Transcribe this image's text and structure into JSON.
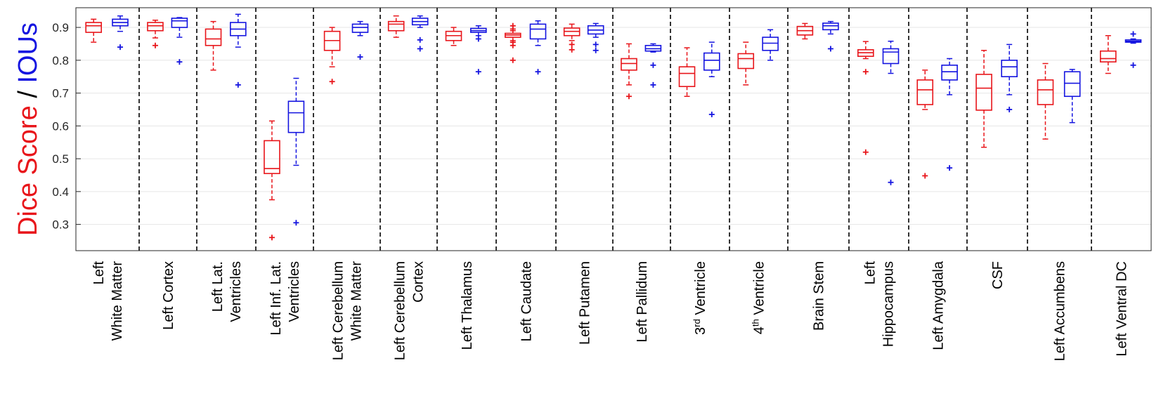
{
  "chart_data": {
    "type": "box",
    "ylabel_parts": [
      {
        "text": "Dice Score",
        "color": "#e8151a"
      },
      {
        "text": " / ",
        "color": "#000000"
      },
      {
        "text": "IOUs",
        "color": "#1414e0"
      }
    ],
    "ylim": [
      0.22,
      0.96
    ],
    "yticks": [
      "0.3",
      "0.4",
      "0.5",
      "0.6",
      "0.7",
      "0.8",
      "0.9"
    ],
    "grid": true,
    "series": [
      {
        "color": "#e8151a"
      },
      {
        "color": "#1414e0"
      }
    ],
    "categories": [
      {
        "lines": [
          "Left",
          "White Matter"
        ],
        "boxes": [
          {
            "whislo": 0.855,
            "q1": 0.885,
            "med": 0.905,
            "q3": 0.915,
            "whishi": 0.925,
            "fliers": []
          },
          {
            "whislo": 0.888,
            "q1": 0.905,
            "med": 0.915,
            "q3": 0.925,
            "whishi": 0.935,
            "fliers": [
              0.84
            ]
          }
        ]
      },
      {
        "lines": [
          "Left Cortex"
        ],
        "boxes": [
          {
            "whislo": 0.868,
            "q1": 0.89,
            "med": 0.905,
            "q3": 0.915,
            "whishi": 0.922,
            "fliers": [
              0.845
            ]
          },
          {
            "whislo": 0.87,
            "q1": 0.9,
            "med": 0.92,
            "q3": 0.928,
            "whishi": 0.93,
            "fliers": [
              0.795
            ]
          }
        ]
      },
      {
        "lines": [
          "Left Lat.",
          "Ventricles"
        ],
        "boxes": [
          {
            "whislo": 0.77,
            "q1": 0.845,
            "med": 0.865,
            "q3": 0.895,
            "whishi": 0.918,
            "fliers": []
          },
          {
            "whislo": 0.84,
            "q1": 0.875,
            "med": 0.895,
            "q3": 0.915,
            "whishi": 0.94,
            "fliers": [
              0.725
            ]
          }
        ]
      },
      {
        "lines": [
          "Left Inf. Lat.",
          "Ventricles"
        ],
        "boxes": [
          {
            "whislo": 0.375,
            "q1": 0.455,
            "med": 0.47,
            "q3": 0.555,
            "whishi": 0.615,
            "fliers": [
              0.26
            ]
          },
          {
            "whislo": 0.48,
            "q1": 0.58,
            "med": 0.64,
            "q3": 0.675,
            "whishi": 0.745,
            "fliers": [
              0.305
            ]
          }
        ]
      },
      {
        "lines": [
          "Left Cerebellum",
          "White Matter"
        ],
        "boxes": [
          {
            "whislo": 0.78,
            "q1": 0.83,
            "med": 0.86,
            "q3": 0.888,
            "whishi": 0.9,
            "fliers": [
              0.735
            ]
          },
          {
            "whislo": 0.875,
            "q1": 0.885,
            "med": 0.9,
            "q3": 0.91,
            "whishi": 0.918,
            "fliers": [
              0.81
            ]
          }
        ]
      },
      {
        "lines": [
          "Left Cerebellum",
          "Cortex"
        ],
        "boxes": [
          {
            "whislo": 0.87,
            "q1": 0.89,
            "med": 0.91,
            "q3": 0.918,
            "whishi": 0.935,
            "fliers": []
          },
          {
            "whislo": 0.9,
            "q1": 0.908,
            "med": 0.918,
            "q3": 0.928,
            "whishi": 0.935,
            "fliers": [
              0.862,
              0.835
            ]
          }
        ]
      },
      {
        "lines": [
          "Left Thalamus"
        ],
        "boxes": [
          {
            "whislo": 0.845,
            "q1": 0.86,
            "med": 0.875,
            "q3": 0.888,
            "whishi": 0.9,
            "fliers": []
          },
          {
            "whislo": 0.875,
            "q1": 0.885,
            "med": 0.89,
            "q3": 0.897,
            "whishi": 0.905,
            "fliers": [
              0.865,
              0.765
            ]
          }
        ]
      },
      {
        "lines": [
          "Left Caudate"
        ],
        "boxes": [
          {
            "whislo": 0.86,
            "q1": 0.87,
            "med": 0.877,
            "q3": 0.882,
            "whishi": 0.89,
            "fliers": [
              0.905,
              0.895,
              0.855,
              0.845,
              0.8
            ]
          },
          {
            "whislo": 0.845,
            "q1": 0.865,
            "med": 0.895,
            "q3": 0.91,
            "whishi": 0.92,
            "fliers": [
              0.765
            ]
          }
        ]
      },
      {
        "lines": [
          "Left Putamen"
        ],
        "boxes": [
          {
            "whislo": 0.86,
            "q1": 0.875,
            "med": 0.888,
            "q3": 0.898,
            "whishi": 0.91,
            "fliers": [
              0.848,
              0.832
            ]
          },
          {
            "whislo": 0.87,
            "q1": 0.88,
            "med": 0.892,
            "q3": 0.905,
            "whishi": 0.912,
            "fliers": [
              0.848,
              0.83
            ]
          }
        ]
      },
      {
        "lines": [
          "Left Pallidum"
        ],
        "boxes": [
          {
            "whislo": 0.725,
            "q1": 0.77,
            "med": 0.79,
            "q3": 0.805,
            "whishi": 0.85,
            "fliers": [
              0.69
            ]
          },
          {
            "whislo": 0.825,
            "q1": 0.828,
            "med": 0.835,
            "q3": 0.845,
            "whishi": 0.85,
            "fliers": [
              0.785,
              0.725
            ]
          }
        ]
      },
      {
        "lines": [
          "3rd Ventricle"
        ],
        "boxes": [
          {
            "whislo": 0.69,
            "q1": 0.72,
            "med": 0.76,
            "q3": 0.78,
            "whishi": 0.838,
            "fliers": []
          },
          {
            "whislo": 0.75,
            "q1": 0.77,
            "med": 0.8,
            "q3": 0.822,
            "whishi": 0.855,
            "fliers": [
              0.635
            ]
          }
        ]
      },
      {
        "lines": [
          "4th Ventricle"
        ],
        "boxes": [
          {
            "whislo": 0.725,
            "q1": 0.775,
            "med": 0.805,
            "q3": 0.82,
            "whishi": 0.855,
            "fliers": []
          },
          {
            "whislo": 0.8,
            "q1": 0.83,
            "med": 0.852,
            "q3": 0.87,
            "whishi": 0.893,
            "fliers": []
          }
        ]
      },
      {
        "lines": [
          "Brain Stem"
        ],
        "boxes": [
          {
            "whislo": 0.865,
            "q1": 0.877,
            "med": 0.89,
            "q3": 0.903,
            "whishi": 0.912,
            "fliers": []
          },
          {
            "whislo": 0.88,
            "q1": 0.893,
            "med": 0.905,
            "q3": 0.913,
            "whishi": 0.918,
            "fliers": [
              0.835
            ]
          }
        ]
      },
      {
        "lines": [
          "Left",
          "Hippocampus"
        ],
        "boxes": [
          {
            "whislo": 0.805,
            "q1": 0.812,
            "med": 0.823,
            "q3": 0.832,
            "whishi": 0.857,
            "fliers": [
              0.765,
              0.52
            ]
          },
          {
            "whislo": 0.76,
            "q1": 0.79,
            "med": 0.825,
            "q3": 0.835,
            "whishi": 0.858,
            "fliers": [
              0.428
            ]
          }
        ]
      },
      {
        "lines": [
          "Left Amygdala"
        ],
        "boxes": [
          {
            "whislo": 0.65,
            "q1": 0.665,
            "med": 0.71,
            "q3": 0.74,
            "whishi": 0.77,
            "fliers": [
              0.448
            ]
          },
          {
            "whislo": 0.695,
            "q1": 0.74,
            "med": 0.765,
            "q3": 0.785,
            "whishi": 0.805,
            "fliers": [
              0.472
            ]
          }
        ]
      },
      {
        "lines": [
          "CSF"
        ],
        "boxes": [
          {
            "whislo": 0.535,
            "q1": 0.648,
            "med": 0.715,
            "q3": 0.757,
            "whishi": 0.83,
            "fliers": []
          },
          {
            "whislo": 0.695,
            "q1": 0.75,
            "med": 0.78,
            "q3": 0.8,
            "whishi": 0.848,
            "fliers": [
              0.65
            ]
          }
        ]
      },
      {
        "lines": [
          "Left Accumbens"
        ],
        "boxes": [
          {
            "whislo": 0.56,
            "q1": 0.665,
            "med": 0.71,
            "q3": 0.74,
            "whishi": 0.79,
            "fliers": []
          },
          {
            "whislo": 0.61,
            "q1": 0.69,
            "med": 0.73,
            "q3": 0.765,
            "whishi": 0.772,
            "fliers": []
          }
        ]
      },
      {
        "lines": [
          "Left Ventral DC"
        ],
        "boxes": [
          {
            "whislo": 0.76,
            "q1": 0.795,
            "med": 0.805,
            "q3": 0.828,
            "whishi": 0.875,
            "fliers": []
          },
          {
            "whislo": 0.852,
            "q1": 0.855,
            "med": 0.858,
            "q3": 0.862,
            "whishi": 0.865,
            "fliers": [
              0.88,
              0.785
            ]
          }
        ]
      }
    ]
  }
}
